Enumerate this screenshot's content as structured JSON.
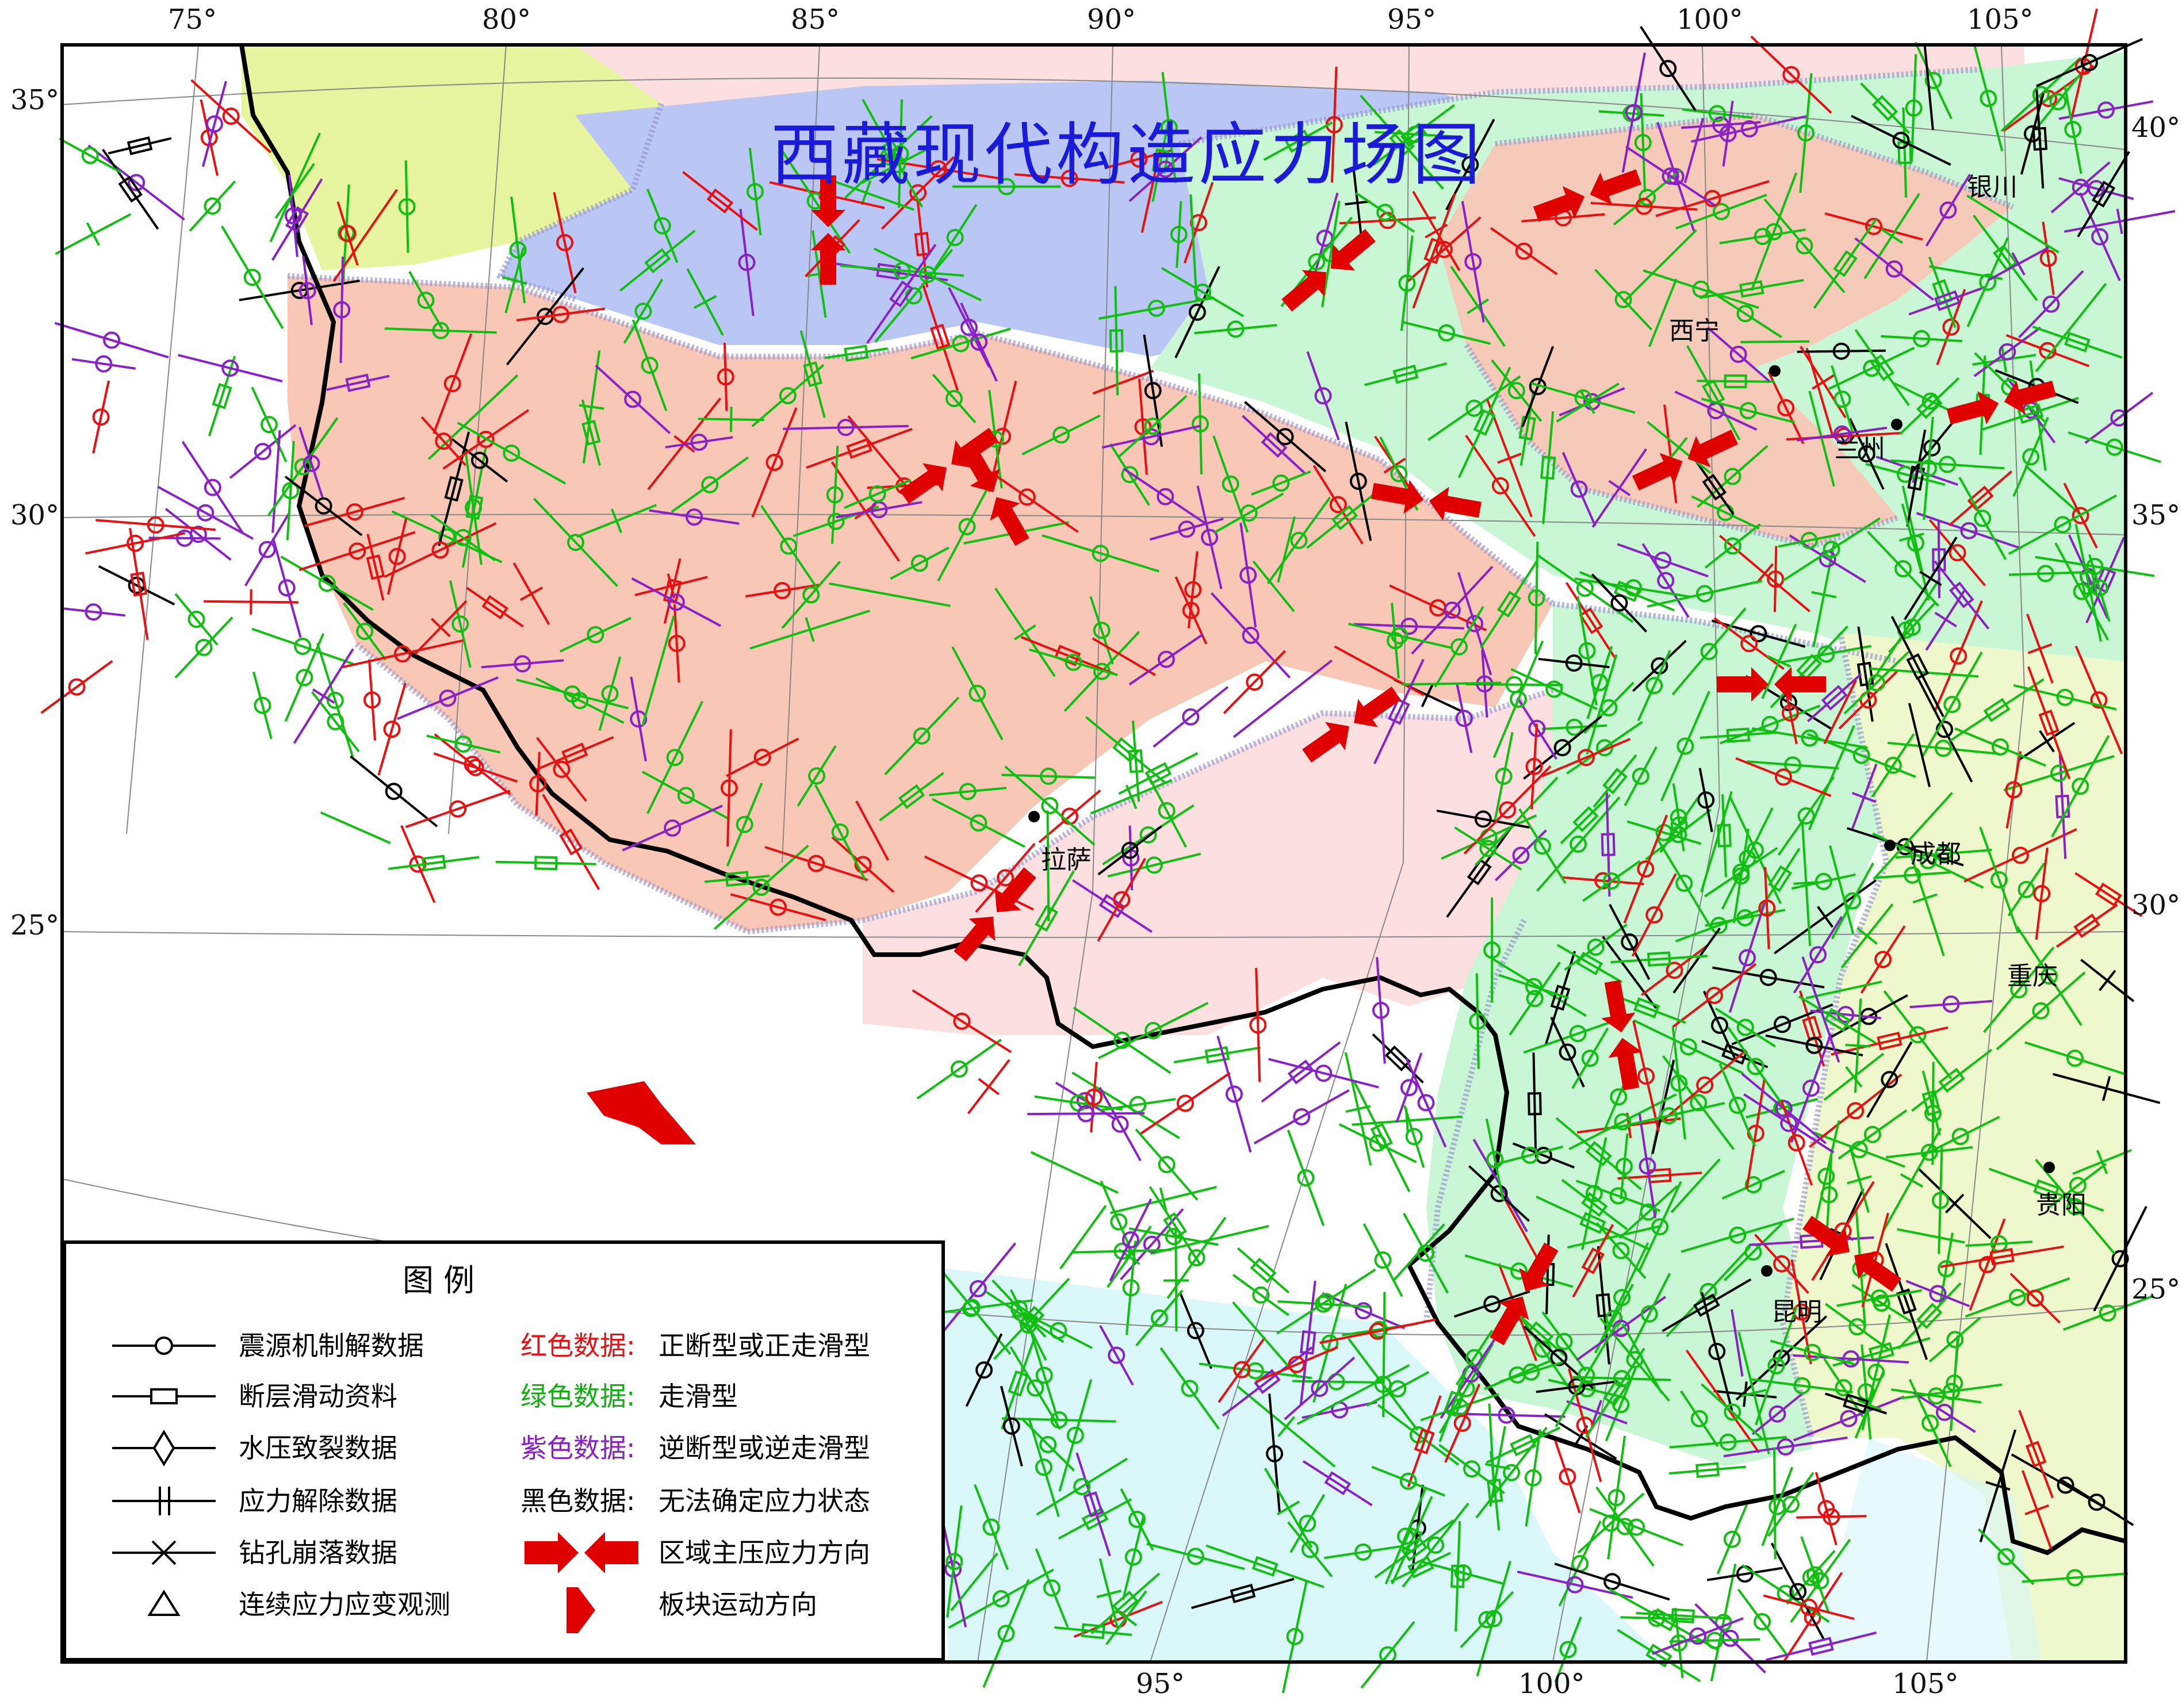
{
  "title": "西藏现代构造应力场图",
  "longitude_top": [
    "75°",
    "80°",
    "85°",
    "90°",
    "95°",
    "100°",
    "105°"
  ],
  "longitude_bottom": [
    "95°",
    "100°",
    "105°"
  ],
  "latitude_left": [
    "35°",
    "30°",
    "25°"
  ],
  "latitude_right": [
    "40°",
    "35°",
    "30°",
    "25°"
  ],
  "cities": [
    {
      "name": "银川"
    },
    {
      "name": "西宁"
    },
    {
      "name": "兰州"
    },
    {
      "name": "拉萨"
    },
    {
      "name": "成都"
    },
    {
      "name": "重庆"
    },
    {
      "name": "贵阳"
    },
    {
      "name": "昆明"
    }
  ],
  "legend": {
    "title": "图        例",
    "symbols": [
      {
        "label": "震源机制解数据",
        "icon": "circle-line-icon"
      },
      {
        "label": "断层滑动资料",
        "icon": "rectangle-line-icon"
      },
      {
        "label": "水压致裂数据",
        "icon": "diamond-line-icon"
      },
      {
        "label": "应力解除数据",
        "icon": "double-bar-line-icon"
      },
      {
        "label": "钻孔崩落数据",
        "icon": "cross-line-icon"
      },
      {
        "label": "连续应力应变观测",
        "icon": "triangle-icon"
      }
    ],
    "colors": [
      {
        "key": "红色数据:",
        "desc": "正断型或正走滑型",
        "color": "#e81010"
      },
      {
        "key": "绿色数据:",
        "desc": "走滑型",
        "color": "#10c010"
      },
      {
        "key": "紫色数据:",
        "desc": "逆断型或逆走滑型",
        "color": "#8a20c8"
      },
      {
        "key": "黑色数据:",
        "desc": "无法确定应力状态",
        "color": "#000000"
      }
    ],
    "arrows": [
      {
        "label": "区域主压应力方向",
        "icon": "converging-arrows-icon"
      },
      {
        "label": "板块运动方向",
        "icon": "plate-arrow-icon"
      }
    ]
  },
  "colors": {
    "red_data": "#e81010",
    "green_data": "#10c010",
    "purple_data": "#8a20c8",
    "black_data": "#000000",
    "region_salmon": "#f7c9b8",
    "region_pink": "#fce0e0",
    "region_blue": "#bac7f5",
    "region_green": "#c8f5d2",
    "region_yellow": "#e8f7a8",
    "region_lightyellow": "#eff7cc",
    "region_cyan": "#d6f6f8",
    "arrow_red": "#e00000"
  }
}
